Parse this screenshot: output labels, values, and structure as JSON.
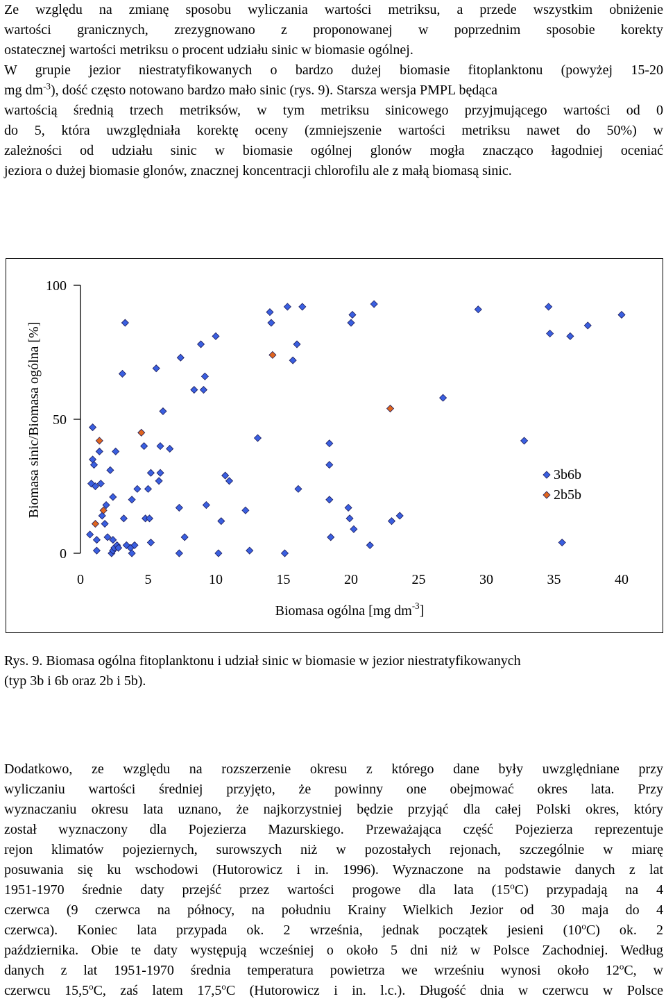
{
  "paragraph1": {
    "lines": [
      "Ze względu na zmianę sposobu wyliczania wartości metriksu, a przede wszystkim obniżenie",
      "wartości granicznych, zrezygnowano z proponowanej w poprzednim sposobie korekty",
      "ostatecznej wartości metriksu o procent udziału sinic w biomasie ogólnej.",
      "W grupie jezior niestratyfikowanych o bardzo dużej biomasie fitoplanktonu (powyżej 15-20",
      "), dość często notowano bardzo mało sinic (rys. 9). Starsza wersja PMPL będąca",
      "wartością średnią trzech metriksów, w tym metriksu sinicowego przyjmującego wartości od 0",
      "do 5, która uwzględniała korektę oceny (zmniejszenie wartości metriksu nawet do 50%) w",
      "zależności od udziału sinic w biomasie ogólnej glonów mogła znacząco łagodniej oceniać",
      "jeziora o dużej biomasie glonów, znacznej koncentracji chlorofilu ale z małą biomasą sinic."
    ],
    "unit_base": "mg dm",
    "unit_exp": "-3"
  },
  "caption": {
    "line1": "Rys. 9. Biomasa ogólna fitoplanktonu i udział sinic w biomasie w jezior niestratyfikowanych",
    "line2": "(typ 3b i 6b oraz 2b i 5b)."
  },
  "paragraph3": {
    "l1": "Dodatkowo, ze względu na rozszerzenie okresu z którego dane były uwzględniane przy",
    "l2": "wyliczaniu wartości średniej przyjęto, że powinny one obejmować okres lata. Przy",
    "l3": "wyznaczaniu okresu lata uznano, że najkorzystniej będzie przyjąć dla całej Polski okres, który",
    "l4": "został wyznaczony dla Pojezierza Mazurskiego. Przeważająca część Pojezierza reprezentuje",
    "l5": "rejon klimatów pojeziernych, surowszych niż w pozostałych rejonach, szczególnie w miarę",
    "l6": "posuwania się ku wschodowi (Hutorowicz i in. 1996). Wyznaczone na podstawie danych z lat",
    "l7a": "1951-1970 średnie daty przejść przez wartości progowe dla lata (15",
    "l7b": "C) przypadają na 4",
    "l8": "czerwca (9 czerwca na północy, na południu Krainy Wielkich Jezior od 30 maja do 4",
    "l9a": "czerwca). Koniec lata przypada ok. 2 września, jednak początek jesieni (10",
    "l9b": "C) ok. 2",
    "l10": "października. Obie te daty występują wcześniej o około 5 dni niż w Polsce Zachodniej. Według",
    "l11a": "danych z lat 1951-1970  średnia temperatura powietrza we wrześniu wynosi około 12",
    "l11b": "C, w",
    "l12a": "czerwcu 15,5",
    "l12b": "C, zaś latem 17,5",
    "l12c": "C (Hutorowicz i in. l.c.). Długość dnia w czerwcu w Polsce",
    "deg": "o"
  },
  "chart_data": {
    "type": "scatter",
    "title": "",
    "xlabel_base": "Biomasa ogólna [mg dm",
    "xlabel_exp": "-3",
    "xlabel_end": "]",
    "ylabel": "Biomasa sinic/Biomasa ogólna [%]",
    "xlim": [
      0,
      40
    ],
    "ylim": [
      0,
      100
    ],
    "x_ticks": [
      "0",
      "5",
      "10",
      "15",
      "20",
      "25",
      "30",
      "35",
      "40"
    ],
    "y_ticks": [
      "0",
      "50",
      "100"
    ],
    "grid": false,
    "legend_position": "right",
    "series": [
      {
        "name": "3b6b",
        "color": "#3A5FE0",
        "marker": "diamond",
        "points": [
          [
            0.7,
            7
          ],
          [
            0.8,
            26
          ],
          [
            0.9,
            47
          ],
          [
            0.9,
            35
          ],
          [
            1,
            33
          ],
          [
            1.1,
            25
          ],
          [
            1.2,
            1
          ],
          [
            1.2,
            5
          ],
          [
            1.4,
            38
          ],
          [
            1.5,
            26
          ],
          [
            1.6,
            14
          ],
          [
            1.8,
            11
          ],
          [
            1.9,
            18
          ],
          [
            2,
            6
          ],
          [
            2.2,
            31
          ],
          [
            2.3,
            0
          ],
          [
            2.4,
            1
          ],
          [
            2.4,
            21
          ],
          [
            2.4,
            5
          ],
          [
            2.5,
            2
          ],
          [
            2.6,
            38
          ],
          [
            2.7,
            3
          ],
          [
            2.8,
            2
          ],
          [
            3.1,
            67
          ],
          [
            3.2,
            13
          ],
          [
            3.3,
            86
          ],
          [
            3.4,
            3
          ],
          [
            3.7,
            2
          ],
          [
            3.8,
            0
          ],
          [
            3.8,
            20
          ],
          [
            4,
            3
          ],
          [
            4.2,
            24
          ],
          [
            4.7,
            40
          ],
          [
            4.8,
            13
          ],
          [
            5,
            24
          ],
          [
            5.1,
            13
          ],
          [
            5.2,
            30
          ],
          [
            5.2,
            4
          ],
          [
            5.6,
            69
          ],
          [
            5.8,
            27
          ],
          [
            5.9,
            30
          ],
          [
            5.9,
            40
          ],
          [
            6.1,
            53
          ],
          [
            6.6,
            39
          ],
          [
            7.3,
            0
          ],
          [
            7.3,
            17
          ],
          [
            7.4,
            73
          ],
          [
            7.7,
            6
          ],
          [
            8.4,
            61
          ],
          [
            8.9,
            78
          ],
          [
            9.1,
            61
          ],
          [
            9.2,
            66
          ],
          [
            9.3,
            18
          ],
          [
            10,
            81
          ],
          [
            10.2,
            0
          ],
          [
            10.4,
            12
          ],
          [
            10.7,
            29
          ],
          [
            11,
            27
          ],
          [
            12.2,
            16
          ],
          [
            12.5,
            1
          ],
          [
            13.1,
            43
          ],
          [
            14,
            90
          ],
          [
            14.1,
            86
          ],
          [
            15.1,
            0
          ],
          [
            15.3,
            92
          ],
          [
            15.7,
            72
          ],
          [
            16,
            78
          ],
          [
            16.1,
            24
          ],
          [
            16.4,
            92
          ],
          [
            18.4,
            41
          ],
          [
            18.4,
            33
          ],
          [
            18.4,
            20
          ],
          [
            18.5,
            6
          ],
          [
            19.8,
            17
          ],
          [
            19.9,
            13
          ],
          [
            20,
            86
          ],
          [
            20.1,
            89
          ],
          [
            20.2,
            9
          ],
          [
            21.4,
            3
          ],
          [
            21.7,
            93
          ],
          [
            23,
            12
          ],
          [
            23.6,
            14
          ],
          [
            26.8,
            58
          ],
          [
            29.4,
            91
          ],
          [
            32.8,
            42
          ],
          [
            34.6,
            92
          ],
          [
            34.7,
            82
          ],
          [
            35.6,
            4
          ],
          [
            36.2,
            81
          ],
          [
            37.5,
            85
          ],
          [
            40,
            89
          ]
        ]
      },
      {
        "name": "2b5b",
        "color": "#E0651E",
        "marker": "diamond",
        "points": [
          [
            1.1,
            11
          ],
          [
            1.4,
            42
          ],
          [
            1.7,
            16
          ],
          [
            4.5,
            45
          ],
          [
            14.2,
            74
          ],
          [
            22.9,
            54
          ]
        ]
      }
    ]
  }
}
